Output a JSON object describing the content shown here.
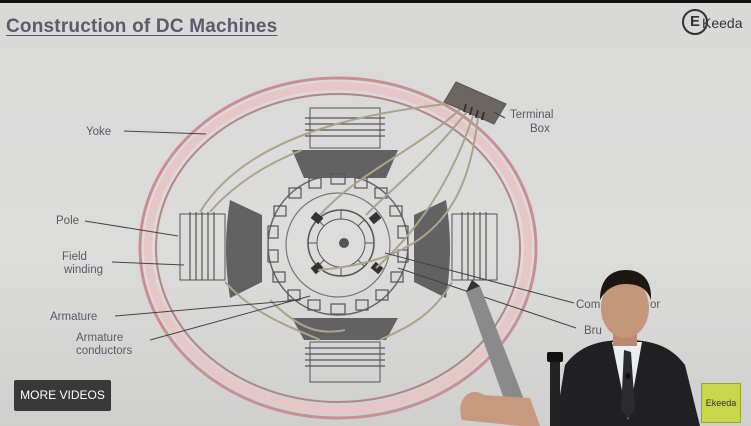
{
  "slide": {
    "title": "Construction of DC Machines"
  },
  "diagram_labels": {
    "yoke": "Yoke",
    "terminal_box_line1": "Terminal",
    "terminal_box_line2": "Box",
    "pole": "Pole",
    "field_winding_line1": "Field",
    "field_winding_line2": "winding",
    "armature": "Armature",
    "armature_conductors_line1": "Armature",
    "armature_conductors_line2": "conductors",
    "commutator_partial": "Com",
    "commutator_partial_end": "or",
    "brush_partial": "Bru"
  },
  "logo": {
    "letter": "E",
    "text": "Keeda"
  },
  "watermark": {
    "text": "Ekeeda"
  },
  "controls": {
    "more_videos": "MORE VIDEOS"
  },
  "colors": {
    "yoke_outer": "#c98f92",
    "yoke_fill": "#e7c6c6",
    "pole_fill": "#626262",
    "wire": "#a9a48a"
  }
}
